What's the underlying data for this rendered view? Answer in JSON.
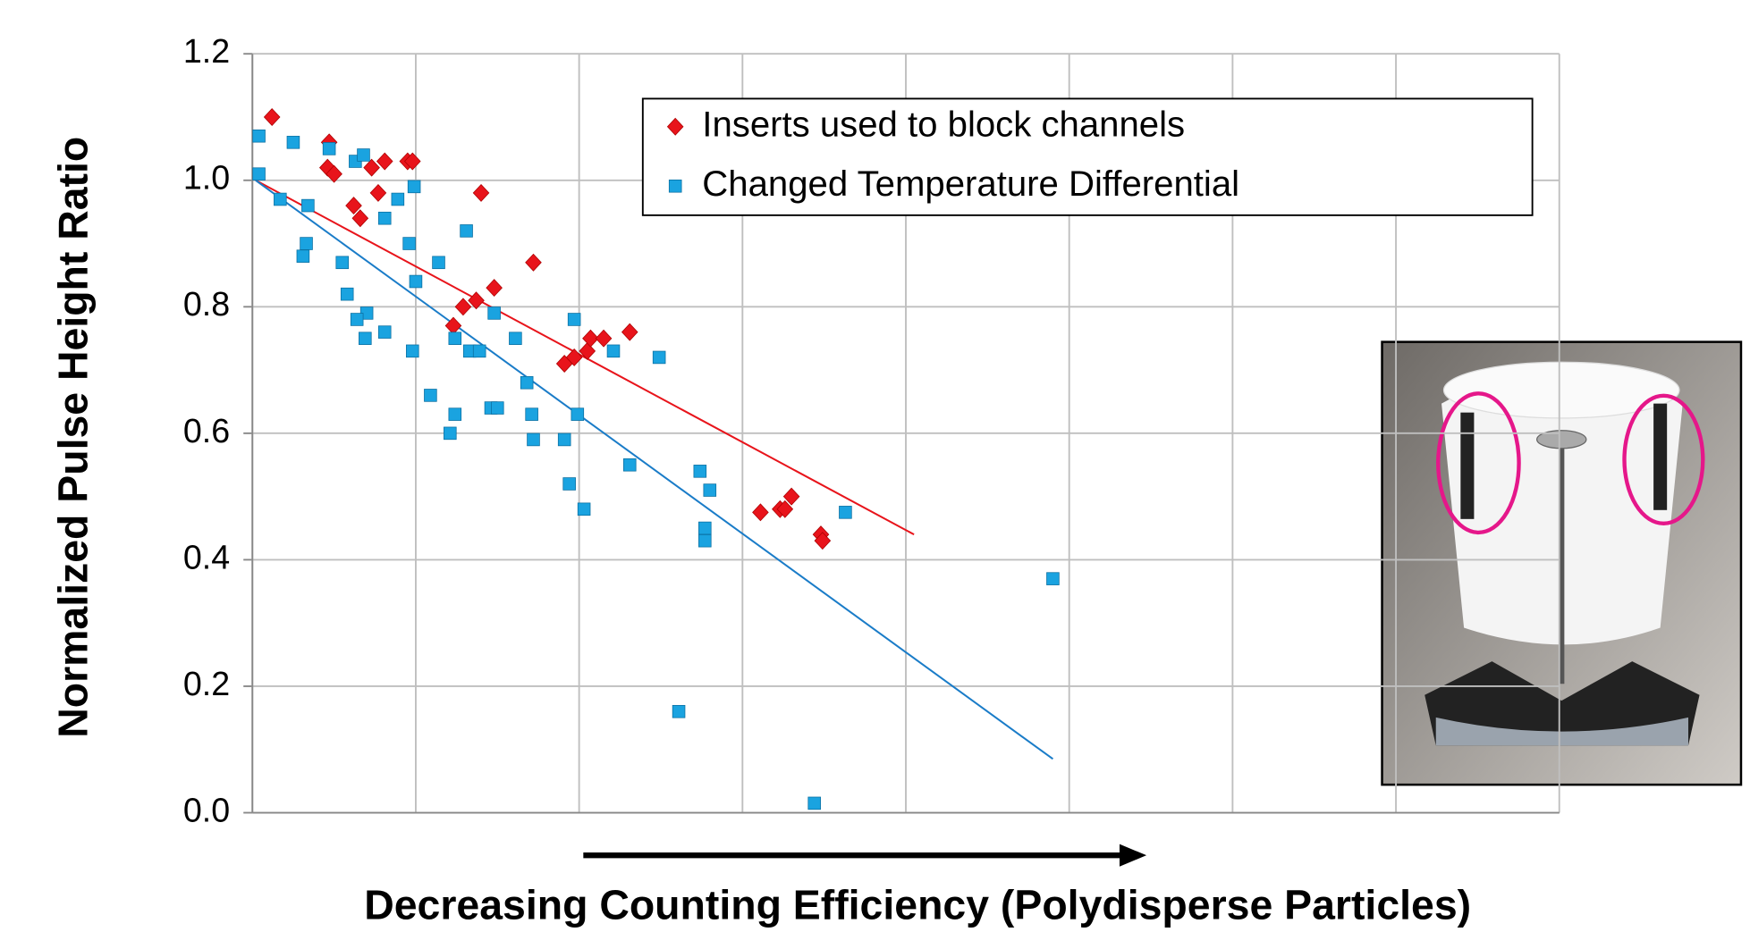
{
  "chart_data": {
    "type": "scatter",
    "x_label": "Decreasing Counting Efficiency (Polydisperse Particles)",
    "y_label": "Normalized Pulse Height Ratio",
    "xlim": [
      0,
      8
    ],
    "xticks": [
      0,
      1,
      2,
      3,
      4,
      5,
      6,
      7,
      8
    ],
    "show_xtick_labels": false,
    "ylim": [
      0,
      1.2
    ],
    "yticks": [
      {
        "value": 0,
        "label": "0.0"
      },
      {
        "value": 0.2,
        "label": "0.2"
      },
      {
        "value": 0.4,
        "label": "0.4"
      },
      {
        "value": 0.6,
        "label": "0.6"
      },
      {
        "value": 0.8,
        "label": "0.8"
      },
      {
        "value": 1.0,
        "label": "1.0"
      },
      {
        "value": 1.2,
        "label": "1.2"
      }
    ],
    "grid": true,
    "legend": "upper-center",
    "series": [
      {
        "name": "Inserts used to block channels",
        "color": "#e8141b",
        "marker": "diamond",
        "x": [
          0.12,
          0.47,
          0.46,
          0.5,
          0.62,
          0.66,
          0.73,
          0.77,
          0.81,
          0.95,
          0.98,
          1.4,
          1.23,
          1.29,
          1.37,
          1.48,
          1.72,
          1.91,
          1.97,
          2.05,
          2.07,
          2.15,
          2.31,
          3.11,
          3.23,
          3.26,
          3.3,
          3.48,
          3.49
        ],
        "values": [
          1.1,
          1.06,
          1.02,
          1.01,
          0.96,
          0.94,
          1.02,
          0.98,
          1.03,
          1.03,
          1.03,
          0.98,
          0.77,
          0.8,
          0.81,
          0.83,
          0.87,
          0.71,
          0.72,
          0.73,
          0.75,
          0.75,
          0.76,
          0.475,
          0.48,
          0.48,
          0.5,
          0.44,
          0.43
        ],
        "trend_x": [
          0.02,
          4.05
        ],
        "trend_y": [
          1.0,
          0.44
        ],
        "trend_color": "#e8141b"
      },
      {
        "name": "Changed Temperature Differential",
        "color": "#1aa3e0",
        "marker": "square",
        "x": [
          0.04,
          0.04,
          0.25,
          0.17,
          0.34,
          0.33,
          0.31,
          0.47,
          0.55,
          0.58,
          0.63,
          0.68,
          0.7,
          0.64,
          0.69,
          0.81,
          0.81,
          0.89,
          0.96,
          0.99,
          1.0,
          0.98,
          1.09,
          1.14,
          1.21,
          1.24,
          1.24,
          1.31,
          1.33,
          1.39,
          1.46,
          1.5,
          1.48,
          1.61,
          1.68,
          1.71,
          1.72,
          1.91,
          1.94,
          1.97,
          1.99,
          2.03,
          2.21,
          2.31,
          2.49,
          2.74,
          2.8,
          2.77,
          2.77,
          2.61,
          3.44,
          3.63,
          4.9
        ],
        "values": [
          1.07,
          1.01,
          1.06,
          0.97,
          0.96,
          0.9,
          0.88,
          1.05,
          0.87,
          0.82,
          1.03,
          1.04,
          0.79,
          0.78,
          0.75,
          0.76,
          0.94,
          0.97,
          0.9,
          0.99,
          0.84,
          0.73,
          0.66,
          0.87,
          0.6,
          0.75,
          0.63,
          0.92,
          0.73,
          0.73,
          0.64,
          0.64,
          0.79,
          0.75,
          0.68,
          0.63,
          0.59,
          0.59,
          0.52,
          0.78,
          0.63,
          0.48,
          0.73,
          0.55,
          0.72,
          0.54,
          0.51,
          0.45,
          0.43,
          0.16,
          0.015,
          0.475,
          0.37
        ],
        "trend_x": [
          0.02,
          4.9
        ],
        "trend_y": [
          1.0,
          0.085
        ],
        "trend_color": "#1a7cc8"
      }
    ]
  }
}
